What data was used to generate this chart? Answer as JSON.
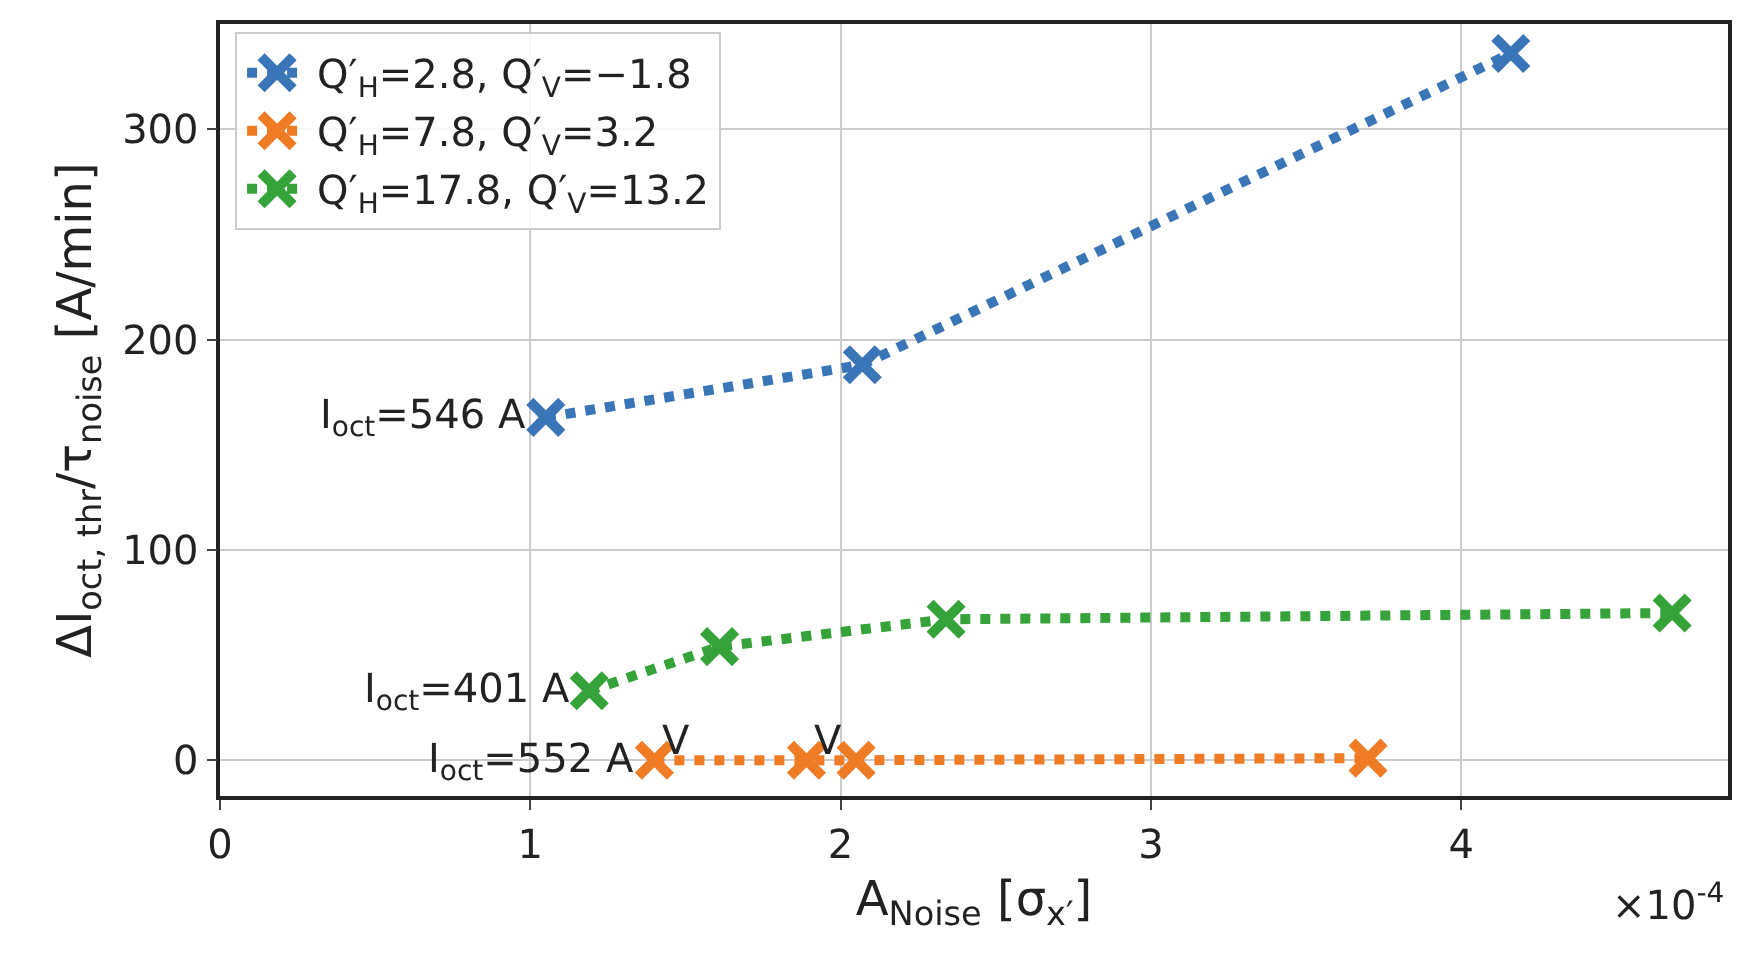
{
  "chart_data": {
    "type": "line",
    "xlabel": "A$_{Noise}$ [σ$_{x′}$]",
    "ylabel": "ΔI$_{oct, thr}$/τ$_{noise}$ [A/min]",
    "xlim": [
      0,
      4.86
    ],
    "xticks": [
      0,
      1,
      2,
      3,
      4
    ],
    "ylim": [
      -17,
      350
    ],
    "yticks": [
      0,
      100,
      200,
      300
    ],
    "grid": true,
    "legend": "top left",
    "marker": "cross",
    "line_style": "dotted",
    "series": [
      {
        "name": "Q′$_{H}$=2.8, Q′$_{V}$=−1.8",
        "color": "#3a75b8",
        "x": [
          1.05,
          2.07,
          4.16
        ],
        "values": [
          163,
          188,
          336
        ]
      },
      {
        "name": "Q′$_{H}$=7.8, Q′$_{V}$=3.2",
        "color": "#f07b25",
        "x": [
          1.4,
          1.89,
          2.05,
          3.7
        ],
        "values": [
          0,
          0,
          0,
          1
        ]
      },
      {
        "name": "Q′$_{H}$=17.8, Q′$_{V}$=13.2",
        "color": "#36a23a",
        "x": [
          1.19,
          1.61,
          2.34,
          4.68
        ],
        "values": [
          33,
          54,
          67,
          70
        ]
      }
    ],
    "annotations": [
      {
        "text": "I$_{oct}$=546 A",
        "x": 1.05,
        "y": 163
      },
      {
        "text": "I$_{oct}$=401 A",
        "x": 1.19,
        "y": 33
      },
      {
        "text": "I$_{oct}$=552 A",
        "x": 1.4,
        "y": 0
      },
      {
        "text": "V",
        "x": 1.4,
        "y": 0
      },
      {
        "text": "V",
        "x": 1.89,
        "y": 0
      },
      "×10$^{-4}$"
    ]
  }
}
